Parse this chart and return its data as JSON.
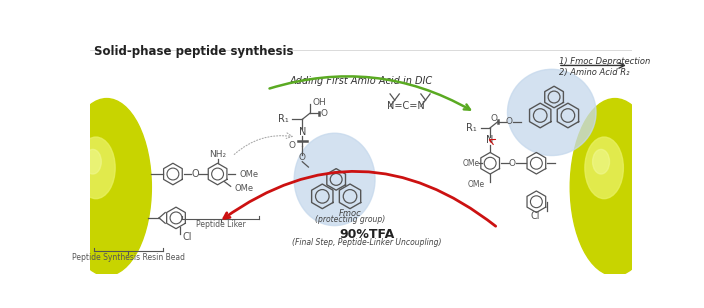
{
  "title": "Solid-phase peptide synthesis",
  "title_fontsize": 8.5,
  "title_weight": "bold",
  "bg_color": "#ffffff",
  "bead_color_outer": "#c8d400",
  "bead_color_inner": "#e8f060",
  "blue_highlight": "#c5d8ec",
  "green_arrow_color": "#5aaa22",
  "red_arrow_color": "#cc1111",
  "black_arrow_color": "#333333",
  "bond_color": "#555555",
  "text_adding": "Adding First Amio Acid in DIC",
  "text_fmoc": "Fmoc",
  "text_fmoc2": "(protecting group)",
  "text_peptide_linker": "Peptide Liker",
  "text_90tfa": "90%TFA",
  "text_90tfa_sub": "(Final Step, Peptide-Linker Uncoupling)",
  "text_resin": "Peptide Synthesis Resin Bead",
  "text_step1": "1) Fmoc Deprotection",
  "text_step2": "2) Amino Acid R₂",
  "figsize": [
    7.04,
    3.08
  ],
  "dpi": 100
}
